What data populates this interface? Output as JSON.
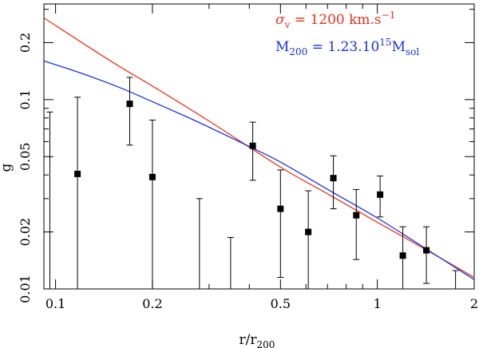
{
  "chart_data": {
    "type": "scatter",
    "xlabel": "r/r",
    "xlabel_sub": "200",
    "ylabel": "g",
    "x_scale": "log",
    "y_scale": "log",
    "xlim": [
      0.092,
      2.0
    ],
    "ylim": [
      0.01,
      0.32
    ],
    "x_ticks": [
      {
        "value": 0.1,
        "label": "0.1"
      },
      {
        "value": 0.2,
        "label": "0.2"
      },
      {
        "value": 0.5,
        "label": "0.5"
      },
      {
        "value": 1,
        "label": "1"
      },
      {
        "value": 2,
        "label": "2"
      }
    ],
    "y_ticks": [
      {
        "value": 0.01,
        "label": "0.01"
      },
      {
        "value": 0.02,
        "label": "0.02"
      },
      {
        "value": 0.05,
        "label": "0.05"
      },
      {
        "value": 0.1,
        "label": "0.1"
      },
      {
        "value": 0.2,
        "label": "0.2"
      }
    ],
    "points": [
      {
        "x": 0.117,
        "y": 0.0405,
        "lo": 0.01,
        "hi": 0.103,
        "marker": true
      },
      {
        "x": 0.17,
        "y": 0.095,
        "lo": 0.0575,
        "hi": 0.131,
        "marker": true
      },
      {
        "x": 0.2,
        "y": 0.039,
        "lo": 0.01,
        "hi": 0.078,
        "marker": true
      },
      {
        "x": 0.41,
        "y": 0.057,
        "lo": 0.0375,
        "hi": 0.076,
        "marker": true
      },
      {
        "x": 0.5,
        "y": 0.0265,
        "lo": 0.0115,
        "hi": 0.0425,
        "marker": true
      },
      {
        "x": 0.61,
        "y": 0.02,
        "lo": 0.01,
        "hi": 0.033,
        "marker": true
      },
      {
        "x": 0.73,
        "y": 0.0385,
        "lo": 0.0265,
        "hi": 0.0505,
        "marker": true
      },
      {
        "x": 0.86,
        "y": 0.0245,
        "lo": 0.0143,
        "hi": 0.0335,
        "marker": true
      },
      {
        "x": 1.02,
        "y": 0.0315,
        "lo": 0.024,
        "hi": 0.0395,
        "marker": true
      },
      {
        "x": 1.2,
        "y": 0.015,
        "lo": 0.01,
        "hi": 0.0213,
        "marker": true
      },
      {
        "x": 1.42,
        "y": 0.016,
        "lo": 0.0107,
        "hi": 0.0213,
        "marker": true
      },
      {
        "x": 0.096,
        "y": null,
        "lo": 0.01,
        "hi": 0.086,
        "marker": false
      },
      {
        "x": 0.28,
        "y": null,
        "lo": 0.01,
        "hi": 0.03,
        "marker": false
      },
      {
        "x": 0.35,
        "y": null,
        "lo": 0.01,
        "hi": 0.0187,
        "marker": false
      },
      {
        "x": 1.75,
        "y": null,
        "lo": 0.01,
        "hi": 0.0125,
        "marker": false
      }
    ],
    "series": [
      {
        "name": "σv = 1200 km.s−1",
        "color": "#e8331a",
        "x": [
          0.092,
          0.15,
          0.2,
          0.3,
          0.5,
          0.7,
          1.0,
          1.4,
          2.0
        ],
        "y": [
          0.27,
          0.158,
          0.118,
          0.077,
          0.044,
          0.0318,
          0.0225,
          0.0163,
          0.0115
        ]
      },
      {
        "name": "M200 = 1.23.1015Msol",
        "color": "#1a33d6",
        "x": [
          0.092,
          0.12,
          0.16,
          0.2,
          0.25,
          0.3,
          0.4,
          0.5,
          0.7,
          1.0,
          1.4,
          2.0
        ],
        "y": [
          0.16,
          0.138,
          0.115,
          0.0975,
          0.0825,
          0.0715,
          0.0565,
          0.0468,
          0.0336,
          0.0237,
          0.0165,
          0.0112
        ]
      }
    ],
    "legend": [
      {
        "main": "σ",
        "sub": "v",
        "rest": " = 1200 km.s",
        "sup": "−1",
        "color": "#e8331a"
      },
      {
        "main": "M",
        "sub": "200",
        "rest": " = 1.23.10",
        "sup": "15",
        "rest2": "M",
        "sub2": "sol",
        "color": "#1a33d6"
      }
    ],
    "legend_position": "top-right",
    "grid": false
  }
}
